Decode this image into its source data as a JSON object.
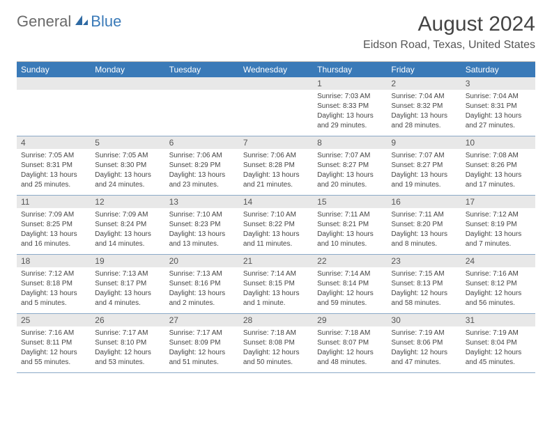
{
  "logo": {
    "general": "General",
    "blue": "Blue"
  },
  "title": "August 2024",
  "location": "Eidson Road, Texas, United States",
  "colors": {
    "header_bg": "#3a7ab8",
    "header_text": "#ffffff",
    "daynum_bg": "#e8e8e8",
    "week_border": "#8aa9c7",
    "body_text": "#444444",
    "logo_gray": "#6a6a6a",
    "logo_blue": "#3a7ab8"
  },
  "weekdays": [
    "Sunday",
    "Monday",
    "Tuesday",
    "Wednesday",
    "Thursday",
    "Friday",
    "Saturday"
  ],
  "weeks": [
    [
      {
        "day": "",
        "sunrise": "",
        "sunset": "",
        "daylight1": "",
        "daylight2": ""
      },
      {
        "day": "",
        "sunrise": "",
        "sunset": "",
        "daylight1": "",
        "daylight2": ""
      },
      {
        "day": "",
        "sunrise": "",
        "sunset": "",
        "daylight1": "",
        "daylight2": ""
      },
      {
        "day": "",
        "sunrise": "",
        "sunset": "",
        "daylight1": "",
        "daylight2": ""
      },
      {
        "day": "1",
        "sunrise": "Sunrise: 7:03 AM",
        "sunset": "Sunset: 8:33 PM",
        "daylight1": "Daylight: 13 hours",
        "daylight2": "and 29 minutes."
      },
      {
        "day": "2",
        "sunrise": "Sunrise: 7:04 AM",
        "sunset": "Sunset: 8:32 PM",
        "daylight1": "Daylight: 13 hours",
        "daylight2": "and 28 minutes."
      },
      {
        "day": "3",
        "sunrise": "Sunrise: 7:04 AM",
        "sunset": "Sunset: 8:31 PM",
        "daylight1": "Daylight: 13 hours",
        "daylight2": "and 27 minutes."
      }
    ],
    [
      {
        "day": "4",
        "sunrise": "Sunrise: 7:05 AM",
        "sunset": "Sunset: 8:31 PM",
        "daylight1": "Daylight: 13 hours",
        "daylight2": "and 25 minutes."
      },
      {
        "day": "5",
        "sunrise": "Sunrise: 7:05 AM",
        "sunset": "Sunset: 8:30 PM",
        "daylight1": "Daylight: 13 hours",
        "daylight2": "and 24 minutes."
      },
      {
        "day": "6",
        "sunrise": "Sunrise: 7:06 AM",
        "sunset": "Sunset: 8:29 PM",
        "daylight1": "Daylight: 13 hours",
        "daylight2": "and 23 minutes."
      },
      {
        "day": "7",
        "sunrise": "Sunrise: 7:06 AM",
        "sunset": "Sunset: 8:28 PM",
        "daylight1": "Daylight: 13 hours",
        "daylight2": "and 21 minutes."
      },
      {
        "day": "8",
        "sunrise": "Sunrise: 7:07 AM",
        "sunset": "Sunset: 8:27 PM",
        "daylight1": "Daylight: 13 hours",
        "daylight2": "and 20 minutes."
      },
      {
        "day": "9",
        "sunrise": "Sunrise: 7:07 AM",
        "sunset": "Sunset: 8:27 PM",
        "daylight1": "Daylight: 13 hours",
        "daylight2": "and 19 minutes."
      },
      {
        "day": "10",
        "sunrise": "Sunrise: 7:08 AM",
        "sunset": "Sunset: 8:26 PM",
        "daylight1": "Daylight: 13 hours",
        "daylight2": "and 17 minutes."
      }
    ],
    [
      {
        "day": "11",
        "sunrise": "Sunrise: 7:09 AM",
        "sunset": "Sunset: 8:25 PM",
        "daylight1": "Daylight: 13 hours",
        "daylight2": "and 16 minutes."
      },
      {
        "day": "12",
        "sunrise": "Sunrise: 7:09 AM",
        "sunset": "Sunset: 8:24 PM",
        "daylight1": "Daylight: 13 hours",
        "daylight2": "and 14 minutes."
      },
      {
        "day": "13",
        "sunrise": "Sunrise: 7:10 AM",
        "sunset": "Sunset: 8:23 PM",
        "daylight1": "Daylight: 13 hours",
        "daylight2": "and 13 minutes."
      },
      {
        "day": "14",
        "sunrise": "Sunrise: 7:10 AM",
        "sunset": "Sunset: 8:22 PM",
        "daylight1": "Daylight: 13 hours",
        "daylight2": "and 11 minutes."
      },
      {
        "day": "15",
        "sunrise": "Sunrise: 7:11 AM",
        "sunset": "Sunset: 8:21 PM",
        "daylight1": "Daylight: 13 hours",
        "daylight2": "and 10 minutes."
      },
      {
        "day": "16",
        "sunrise": "Sunrise: 7:11 AM",
        "sunset": "Sunset: 8:20 PM",
        "daylight1": "Daylight: 13 hours",
        "daylight2": "and 8 minutes."
      },
      {
        "day": "17",
        "sunrise": "Sunrise: 7:12 AM",
        "sunset": "Sunset: 8:19 PM",
        "daylight1": "Daylight: 13 hours",
        "daylight2": "and 7 minutes."
      }
    ],
    [
      {
        "day": "18",
        "sunrise": "Sunrise: 7:12 AM",
        "sunset": "Sunset: 8:18 PM",
        "daylight1": "Daylight: 13 hours",
        "daylight2": "and 5 minutes."
      },
      {
        "day": "19",
        "sunrise": "Sunrise: 7:13 AM",
        "sunset": "Sunset: 8:17 PM",
        "daylight1": "Daylight: 13 hours",
        "daylight2": "and 4 minutes."
      },
      {
        "day": "20",
        "sunrise": "Sunrise: 7:13 AM",
        "sunset": "Sunset: 8:16 PM",
        "daylight1": "Daylight: 13 hours",
        "daylight2": "and 2 minutes."
      },
      {
        "day": "21",
        "sunrise": "Sunrise: 7:14 AM",
        "sunset": "Sunset: 8:15 PM",
        "daylight1": "Daylight: 13 hours",
        "daylight2": "and 1 minute."
      },
      {
        "day": "22",
        "sunrise": "Sunrise: 7:14 AM",
        "sunset": "Sunset: 8:14 PM",
        "daylight1": "Daylight: 12 hours",
        "daylight2": "and 59 minutes."
      },
      {
        "day": "23",
        "sunrise": "Sunrise: 7:15 AM",
        "sunset": "Sunset: 8:13 PM",
        "daylight1": "Daylight: 12 hours",
        "daylight2": "and 58 minutes."
      },
      {
        "day": "24",
        "sunrise": "Sunrise: 7:16 AM",
        "sunset": "Sunset: 8:12 PM",
        "daylight1": "Daylight: 12 hours",
        "daylight2": "and 56 minutes."
      }
    ],
    [
      {
        "day": "25",
        "sunrise": "Sunrise: 7:16 AM",
        "sunset": "Sunset: 8:11 PM",
        "daylight1": "Daylight: 12 hours",
        "daylight2": "and 55 minutes."
      },
      {
        "day": "26",
        "sunrise": "Sunrise: 7:17 AM",
        "sunset": "Sunset: 8:10 PM",
        "daylight1": "Daylight: 12 hours",
        "daylight2": "and 53 minutes."
      },
      {
        "day": "27",
        "sunrise": "Sunrise: 7:17 AM",
        "sunset": "Sunset: 8:09 PM",
        "daylight1": "Daylight: 12 hours",
        "daylight2": "and 51 minutes."
      },
      {
        "day": "28",
        "sunrise": "Sunrise: 7:18 AM",
        "sunset": "Sunset: 8:08 PM",
        "daylight1": "Daylight: 12 hours",
        "daylight2": "and 50 minutes."
      },
      {
        "day": "29",
        "sunrise": "Sunrise: 7:18 AM",
        "sunset": "Sunset: 8:07 PM",
        "daylight1": "Daylight: 12 hours",
        "daylight2": "and 48 minutes."
      },
      {
        "day": "30",
        "sunrise": "Sunrise: 7:19 AM",
        "sunset": "Sunset: 8:06 PM",
        "daylight1": "Daylight: 12 hours",
        "daylight2": "and 47 minutes."
      },
      {
        "day": "31",
        "sunrise": "Sunrise: 7:19 AM",
        "sunset": "Sunset: 8:04 PM",
        "daylight1": "Daylight: 12 hours",
        "daylight2": "and 45 minutes."
      }
    ]
  ]
}
